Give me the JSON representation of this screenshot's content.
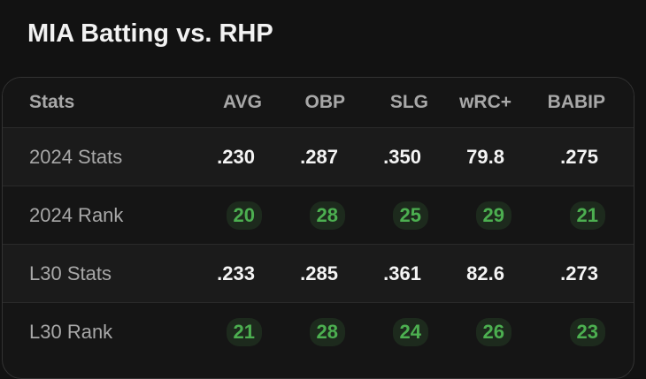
{
  "header": {
    "title": "MIA Batting vs. RHP"
  },
  "table": {
    "headers": [
      "Stats",
      "AVG",
      "OBP",
      "SLG",
      "wRC+",
      "BABIP"
    ],
    "rows": [
      [
        "2024 Stats",
        ".230",
        ".287",
        ".350",
        "79.8",
        ".275"
      ],
      [
        "2024 Rank",
        "20",
        "28",
        "25",
        "29",
        "21"
      ],
      [
        "L30 Stats",
        ".233",
        ".285",
        ".361",
        "82.6",
        ".273"
      ],
      [
        "L30 Rank",
        "21",
        "28",
        "24",
        "26",
        "23"
      ]
    ]
  }
}
